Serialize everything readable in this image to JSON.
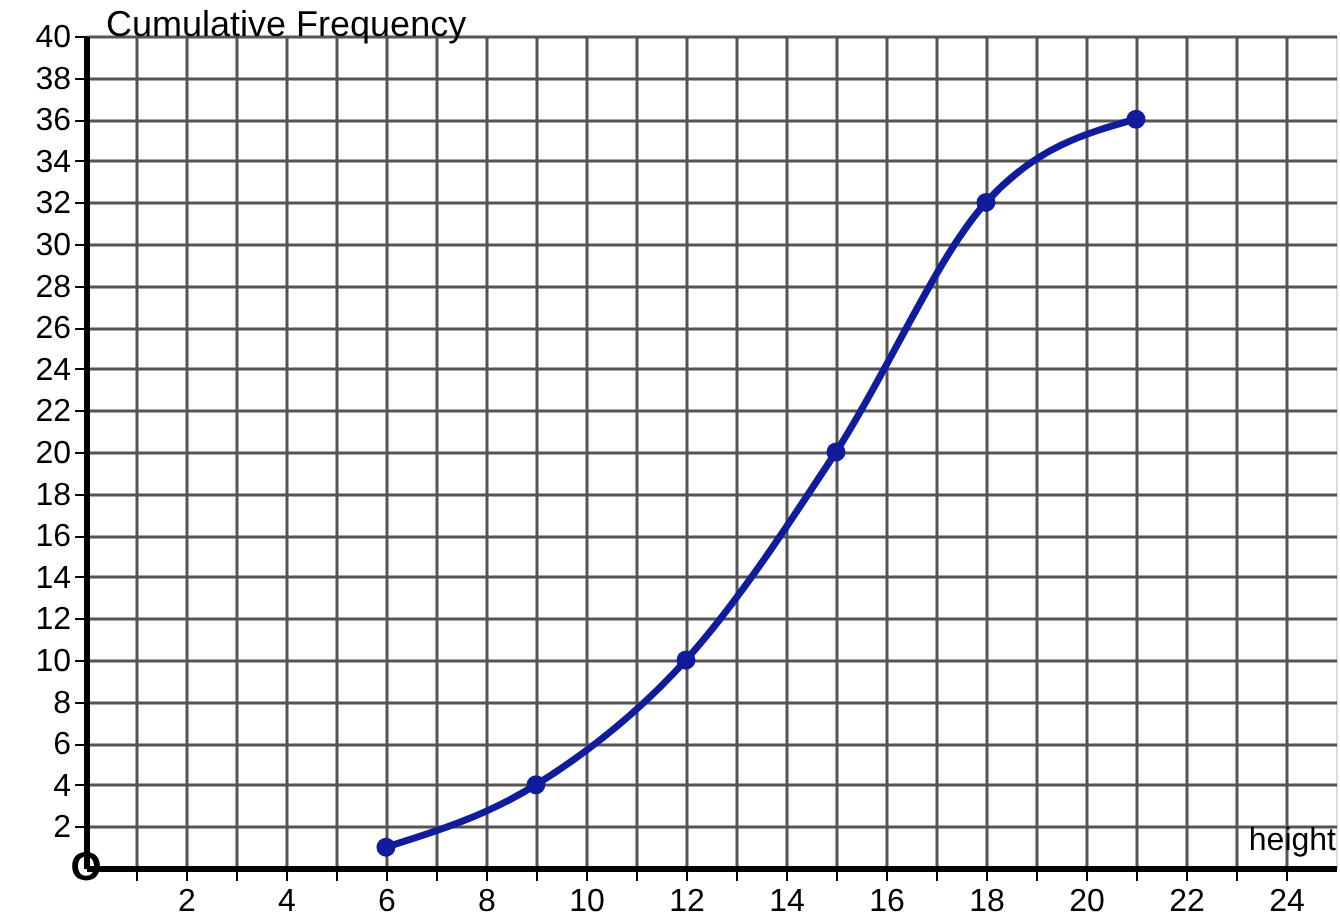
{
  "chart_data": {
    "type": "line",
    "xlabel": "height",
    "ylabel": "Cumulative Frequency",
    "x": [
      6,
      9,
      12,
      15,
      18,
      21
    ],
    "series": [
      {
        "color": "#101c9c",
        "values": [
          1,
          4,
          10,
          20,
          32,
          36
        ]
      }
    ],
    "xlim": [
      0,
      25
    ],
    "ylim": [
      0,
      40
    ],
    "xticks": [
      {
        "value": 1,
        "label": null
      },
      2,
      {
        "value": 3,
        "label": null
      },
      4,
      {
        "value": 5,
        "label": null
      },
      6,
      {
        "value": 7,
        "label": null
      },
      8,
      {
        "value": 9,
        "label": null
      },
      10,
      {
        "value": 11,
        "label": null
      },
      12,
      {
        "value": 13,
        "label": null
      },
      14,
      {
        "value": 15,
        "label": null
      },
      16,
      {
        "value": 17,
        "label": null
      },
      18,
      {
        "value": 19,
        "label": null
      },
      20,
      {
        "value": 21,
        "label": null
      },
      22,
      {
        "value": 23,
        "label": null
      },
      24
    ],
    "yticks": [
      2,
      4,
      6,
      8,
      10,
      12,
      14,
      16,
      18,
      20,
      22,
      24,
      26,
      28,
      30,
      32,
      34,
      36,
      38,
      40
    ],
    "annotations": [
      "O"
    ],
    "grid": true,
    "marker": "circle",
    "line_style": "solid"
  }
}
